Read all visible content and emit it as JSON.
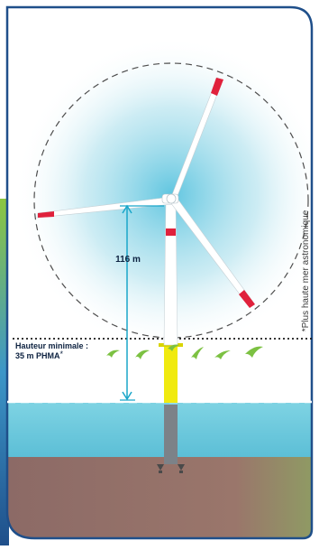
{
  "height_label": "116 m",
  "min_height_line1": "Hauteur minimale :",
  "min_height_line2": "35 m PHMA",
  "min_height_asterisk": "*",
  "footnote": "*Plus haute mer astronomique",
  "colors": {
    "frame_border": "#1f4f8a",
    "green_band": "#8cc63f",
    "sea": "#6cc8dc",
    "seabed": "#957068",
    "dimension_line": "#1aa6c9",
    "transition_piece": "#f0ea0f",
    "red_marker": "#e0213c",
    "bird": "#7cc142",
    "foundation": "#7c8288"
  }
}
